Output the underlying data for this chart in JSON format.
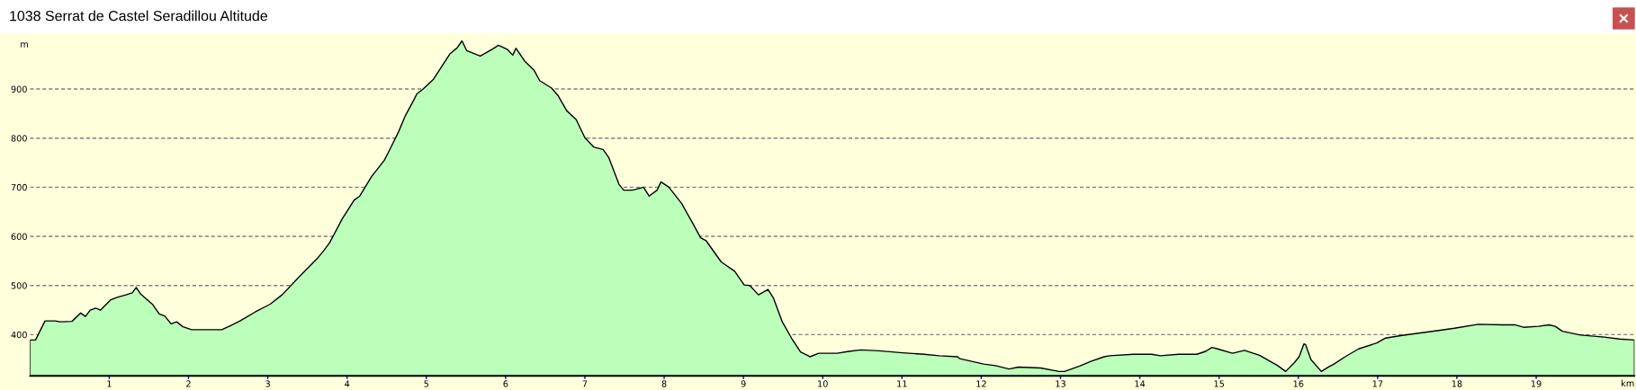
{
  "chart_data": {
    "type": "area",
    "title": "1038 Serrat de Castel Seradillou Altitude",
    "xlabel": "km",
    "ylabel": "m",
    "x": [
      0,
      0.07,
      0.19,
      0.32,
      0.38,
      0.53,
      0.64,
      0.7,
      0.76,
      0.83,
      0.89,
      1.02,
      1.1,
      1.21,
      1.29,
      1.34,
      1.4,
      1.55,
      1.63,
      1.7,
      1.78,
      1.85,
      1.93,
      2.04,
      2.42,
      2.5,
      2.65,
      2.84,
      3.03,
      3.18,
      3.41,
      3.63,
      3.71,
      3.78,
      3.94,
      4.09,
      4.16,
      4.31,
      4.47,
      4.54,
      4.65,
      4.73,
      4.84,
      4.88,
      4.96,
      5.09,
      5.3,
      5.39,
      5.45,
      5.51,
      5.68,
      5.83,
      5.91,
      6.02,
      6.09,
      6.13,
      6.24,
      6.36,
      6.43,
      6.58,
      6.66,
      6.77,
      6.89,
      7.0,
      7.11,
      7.23,
      7.3,
      7.43,
      7.49,
      7.6,
      7.74,
      7.81,
      7.91,
      7.96,
      8.06,
      8.22,
      8.36,
      8.46,
      8.53,
      8.72,
      8.89,
      9.01,
      9.08,
      9.19,
      9.31,
      9.38,
      9.49,
      9.61,
      9.72,
      9.84,
      9.95,
      10.18,
      10.33,
      10.48,
      10.71,
      11.01,
      11.28,
      11.47,
      11.7,
      11.73,
      12.03,
      12.18,
      12.35,
      12.47,
      12.75,
      12.98,
      13.05,
      13.24,
      13.39,
      13.55,
      13.62,
      13.92,
      14.15,
      14.26,
      14.49,
      14.72,
      14.83,
      14.91,
      14.98,
      15.17,
      15.32,
      15.51,
      15.74,
      15.84,
      15.95,
      16.01,
      16.07,
      16.09,
      16.16,
      16.29,
      16.38,
      16.45,
      16.59,
      16.76,
      16.99,
      17.1,
      17.29,
      17.56,
      17.75,
      17.97,
      18.27,
      18.58,
      18.73,
      18.84,
      19.03,
      19.16,
      19.24,
      19.33,
      19.56,
      19.86,
      20.05,
      20.24
    ],
    "series": [
      {
        "color": "#bbffbb",
        "values": [
          389,
          389,
          428,
          428,
          426,
          427,
          444,
          437,
          450,
          454,
          450,
          471,
          476,
          481,
          485,
          496,
          482,
          461,
          442,
          438,
          422,
          426,
          416,
          410,
          410,
          416,
          428,
          446,
          462,
          481,
          520,
          556,
          572,
          587,
          636,
          674,
          682,
          722,
          755,
          777,
          813,
          844,
          877,
          890,
          900,
          920,
          972,
          984,
          998,
          978,
          967,
          981,
          989,
          981,
          969,
          983,
          957,
          938,
          917,
          902,
          887,
          856,
          838,
          801,
          782,
          777,
          761,
          706,
          694,
          694,
          700,
          682,
          694,
          711,
          700,
          667,
          627,
          597,
          591,
          548,
          529,
          501,
          500,
          481,
          492,
          474,
          426,
          392,
          365,
          355,
          362,
          362,
          366,
          369,
          367,
          363,
          360,
          357,
          355,
          351,
          340,
          337,
          330,
          334,
          332,
          325,
          325,
          336,
          346,
          355,
          357,
          360,
          360,
          357,
          360,
          360,
          366,
          374,
          371,
          362,
          368,
          358,
          337,
          325,
          343,
          355,
          381,
          380,
          349,
          325,
          334,
          340,
          355,
          371,
          383,
          393,
          398,
          404,
          408,
          413,
          421,
          420,
          420,
          415,
          417,
          420,
          417,
          407,
          399,
          395,
          391,
          389
        ]
      }
    ],
    "xlim": [
      0,
      20.24
    ],
    "ylim": [
      316,
      1013
    ],
    "xticks": [
      1,
      2,
      3,
      4,
      5,
      6,
      7,
      8,
      9,
      10,
      11,
      12,
      13,
      14,
      15,
      16,
      17,
      18,
      19
    ],
    "yticks": [
      400,
      500,
      600,
      700,
      800,
      900
    ],
    "grid": "y"
  }
}
